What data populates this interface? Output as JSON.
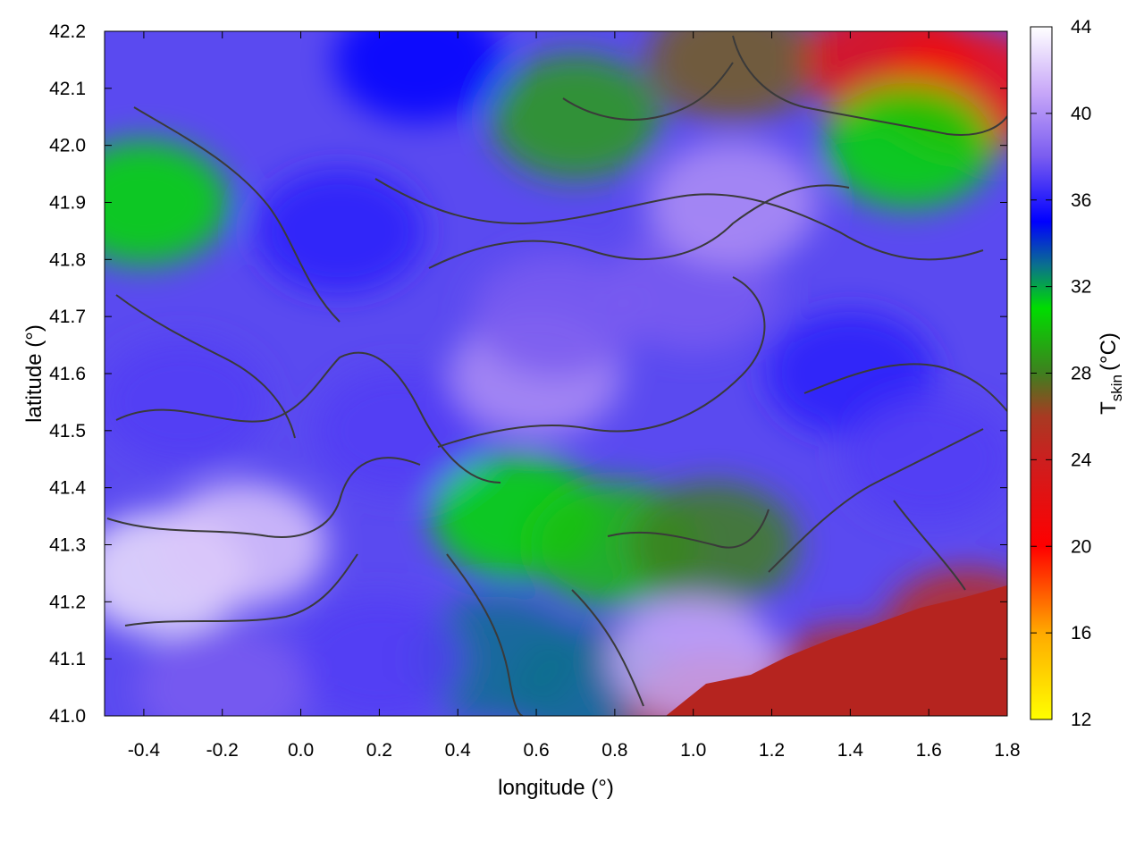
{
  "chart_data": {
    "type": "heatmap",
    "title": "",
    "xlabel": "longitude (°)",
    "ylabel": "latitude (°)",
    "xlim": [
      -0.5,
      1.8
    ],
    "ylim": [
      41.0,
      42.2
    ],
    "x_ticks": [
      -0.4,
      -0.2,
      0.0,
      0.2,
      0.4,
      0.6,
      0.8,
      1.0,
      1.2,
      1.4,
      1.6,
      1.8
    ],
    "x_tick_labels": [
      "-0.4",
      "-0.2",
      "0.0",
      "0.2",
      "0.4",
      "0.6",
      "0.8",
      "1.0",
      "1.2",
      "1.4",
      "1.6",
      "1.8"
    ],
    "y_ticks": [
      41.0,
      41.1,
      41.2,
      41.3,
      41.4,
      41.5,
      41.6,
      41.7,
      41.8,
      41.9,
      42.0,
      42.1,
      42.2
    ],
    "y_tick_labels": [
      "41.0",
      "41.1",
      "41.2",
      "41.3",
      "41.4",
      "41.5",
      "41.6",
      "41.7",
      "41.8",
      "41.9",
      "42.0",
      "42.1",
      "42.2"
    ],
    "colorbar": {
      "label_main": "T",
      "label_sub": "skin",
      "label_unit": "(°C)",
      "range": [
        12,
        44
      ],
      "ticks": [
        12,
        16,
        20,
        24,
        28,
        32,
        36,
        40,
        44
      ],
      "tick_labels": [
        "12",
        "16",
        "20",
        "24",
        "28",
        "32",
        "36",
        "40",
        "44"
      ],
      "palette": [
        {
          "value": 12,
          "color": "#ffff00"
        },
        {
          "value": 16,
          "color": "#ffaa00"
        },
        {
          "value": 20,
          "color": "#ff0000"
        },
        {
          "value": 24,
          "color": "#cc1f1f"
        },
        {
          "value": 26,
          "color": "#a83a22"
        },
        {
          "value": 28,
          "color": "#3f7f1f"
        },
        {
          "value": 31,
          "color": "#00dd00"
        },
        {
          "value": 33,
          "color": "#0a6f8f"
        },
        {
          "value": 35,
          "color": "#0000ff"
        },
        {
          "value": 38,
          "color": "#7a5cf0"
        },
        {
          "value": 41,
          "color": "#c8a8f8"
        },
        {
          "value": 44,
          "color": "#ffffff"
        }
      ]
    },
    "field_samples": [
      {
        "lon": -0.35,
        "lat": 41.25,
        "value": 43
      },
      {
        "lon": -0.15,
        "lat": 41.3,
        "value": 42
      },
      {
        "lon": -0.4,
        "lat": 41.9,
        "value": 31
      },
      {
        "lon": -0.3,
        "lat": 41.55,
        "value": 37
      },
      {
        "lon": 0.1,
        "lat": 41.85,
        "value": 36
      },
      {
        "lon": 0.25,
        "lat": 41.5,
        "value": 37
      },
      {
        "lon": 0.6,
        "lat": 41.6,
        "value": 40
      },
      {
        "lon": 0.65,
        "lat": 41.7,
        "value": 38
      },
      {
        "lon": 1.0,
        "lat": 41.75,
        "value": 38
      },
      {
        "lon": 1.1,
        "lat": 41.9,
        "value": 40
      },
      {
        "lon": 1.4,
        "lat": 41.6,
        "value": 36
      },
      {
        "lon": 1.6,
        "lat": 41.45,
        "value": 37
      },
      {
        "lon": 0.55,
        "lat": 41.35,
        "value": 31
      },
      {
        "lon": 0.8,
        "lat": 41.3,
        "value": 30
      },
      {
        "lon": 1.05,
        "lat": 41.3,
        "value": 28
      },
      {
        "lon": 0.5,
        "lat": 41.1,
        "value": 33
      },
      {
        "lon": 0.75,
        "lat": 41.05,
        "value": 33
      },
      {
        "lon": 0.7,
        "lat": 42.05,
        "value": 29
      },
      {
        "lon": 1.1,
        "lat": 42.15,
        "value": 27
      },
      {
        "lon": 1.5,
        "lat": 42.15,
        "value": 22
      },
      {
        "lon": 1.7,
        "lat": 42.1,
        "value": 21
      },
      {
        "lon": 1.55,
        "lat": 42.0,
        "value": 31
      },
      {
        "lon": 0.3,
        "lat": 42.15,
        "value": 35
      },
      {
        "lon": 1.4,
        "lat": 41.05,
        "value": 25
      },
      {
        "lon": 1.7,
        "lat": 41.15,
        "value": 25
      },
      {
        "lon": 1.05,
        "lat": 41.0,
        "value": 25
      },
      {
        "lon": 1.0,
        "lat": 41.1,
        "value": 41
      },
      {
        "lon": 0.2,
        "lat": 41.1,
        "value": 37
      },
      {
        "lon": -0.2,
        "lat": 41.05,
        "value": 38
      }
    ]
  }
}
